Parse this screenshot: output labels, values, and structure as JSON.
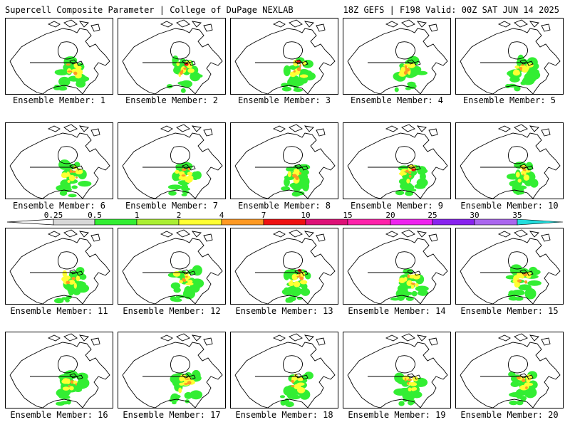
{
  "header": {
    "left": "Supercell Composite Parameter | College of DuPage NEXLAB",
    "right": "18Z GEFS | F198 Valid: 00Z SAT JUN 14 2025"
  },
  "caption_prefix": "Ensemble Member: ",
  "members": [
    {
      "number": 1,
      "label": "Ensemble Member: 1"
    },
    {
      "number": 2,
      "label": "Ensemble Member: 2"
    },
    {
      "number": 3,
      "label": "Ensemble Member: 3"
    },
    {
      "number": 4,
      "label": "Ensemble Member: 4"
    },
    {
      "number": 5,
      "label": "Ensemble Member: 5"
    },
    {
      "number": 6,
      "label": "Ensemble Member: 6"
    },
    {
      "number": 7,
      "label": "Ensemble Member: 7"
    },
    {
      "number": 8,
      "label": "Ensemble Member: 8"
    },
    {
      "number": 9,
      "label": "Ensemble Member: 9"
    },
    {
      "number": 10,
      "label": "Ensemble Member: 10"
    },
    {
      "number": 11,
      "label": "Ensemble Member: 11"
    },
    {
      "number": 12,
      "label": "Ensemble Member: 12"
    },
    {
      "number": 13,
      "label": "Ensemble Member: 13"
    },
    {
      "number": 14,
      "label": "Ensemble Member: 14"
    },
    {
      "number": 15,
      "label": "Ensemble Member: 15"
    },
    {
      "number": 16,
      "label": "Ensemble Member: 16"
    },
    {
      "number": 17,
      "label": "Ensemble Member: 17"
    },
    {
      "number": 18,
      "label": "Ensemble Member: 18"
    },
    {
      "number": 19,
      "label": "Ensemble Member: 19"
    },
    {
      "number": 20,
      "label": "Ensemble Member: 20"
    }
  ],
  "legend": {
    "ticks": [
      "0.25",
      "0.5",
      "1",
      "2",
      "4",
      "7",
      "10",
      "15",
      "20",
      "25",
      "30",
      "35"
    ],
    "colors": [
      "#d8d8d8",
      "#33ee33",
      "#aaee33",
      "#ffff33",
      "#ff9922",
      "#ee1111",
      "#dd1177",
      "#ff22aa",
      "#ee22ee",
      "#8822ee",
      "#aa66ee",
      "#22dddd"
    ]
  },
  "colors": {
    "map_border": "#000000",
    "background": "#ffffff"
  }
}
